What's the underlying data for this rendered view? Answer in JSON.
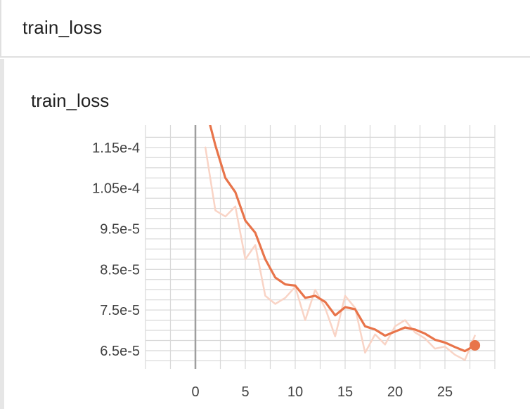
{
  "header": {
    "title": "train_loss"
  },
  "card": {
    "title": "train_loss"
  },
  "colors": {
    "series": "#e8744a",
    "raw": "#f9d4c6",
    "grid": "#d8d8d8",
    "axis_zero": "#9e9e9e"
  },
  "chart_data": {
    "type": "line",
    "title": "train_loss",
    "xlabel": "",
    "ylabel": "",
    "xlim": [
      -5,
      30
    ],
    "ylim": [
      6.05e-05,
      0.0001205
    ],
    "x_ticks": [
      0,
      5,
      10,
      15,
      20,
      25
    ],
    "x_tick_labels": [
      "0",
      "5",
      "10",
      "15",
      "20",
      "25"
    ],
    "y_ticks": [
      6.5e-05,
      7.5e-05,
      8.5e-05,
      9.5e-05,
      0.000105,
      0.000115
    ],
    "y_tick_labels": [
      "6.5e-5",
      "7.5e-5",
      "8.5e-5",
      "9.5e-5",
      "1.05e-4",
      "1.15e-4"
    ],
    "grid": true,
    "series": [
      {
        "role": "smoothed",
        "x": [
          1,
          2,
          3,
          4,
          5,
          6,
          7,
          8,
          9,
          10,
          11,
          12,
          13,
          14,
          15,
          16,
          17,
          18,
          19,
          20,
          21,
          22,
          23,
          24,
          25,
          26,
          27,
          28
        ],
        "values": [
          0.000125,
          0.0001155,
          0.0001075,
          0.000104,
          9.7e-05,
          9.4e-05,
          8.75e-05,
          8.3e-05,
          8.13e-05,
          8.1e-05,
          7.8e-05,
          7.85e-05,
          7.7e-05,
          7.37e-05,
          7.57e-05,
          7.52e-05,
          7.1e-05,
          7.02e-05,
          6.87e-05,
          6.97e-05,
          7.07e-05,
          7.02e-05,
          6.92e-05,
          6.77e-05,
          6.7e-05,
          6.59e-05,
          6.49e-05,
          6.63e-05
        ]
      },
      {
        "role": "raw",
        "x": [
          1,
          2,
          3,
          4,
          5,
          6,
          7,
          8,
          9,
          10,
          11,
          12,
          13,
          14,
          15,
          16,
          17,
          18,
          19,
          20,
          21,
          22,
          23,
          24,
          25,
          26,
          27,
          28
        ],
        "values": [
          0.000115,
          9.95e-05,
          9.8e-05,
          0.0001005,
          8.75e-05,
          9.1e-05,
          7.85e-05,
          7.65e-05,
          7.8e-05,
          8.07e-05,
          7.25e-05,
          8e-05,
          7.55e-05,
          6.85e-05,
          7.85e-05,
          7.55e-05,
          6.45e-05,
          6.9e-05,
          6.65e-05,
          7.1e-05,
          7.25e-05,
          6.95e-05,
          6.8e-05,
          6.55e-05,
          6.6e-05,
          6.4e-05,
          6.27e-05,
          6.87e-05
        ]
      }
    ],
    "last_point": {
      "x": 28,
      "y": 6.63e-05
    }
  }
}
